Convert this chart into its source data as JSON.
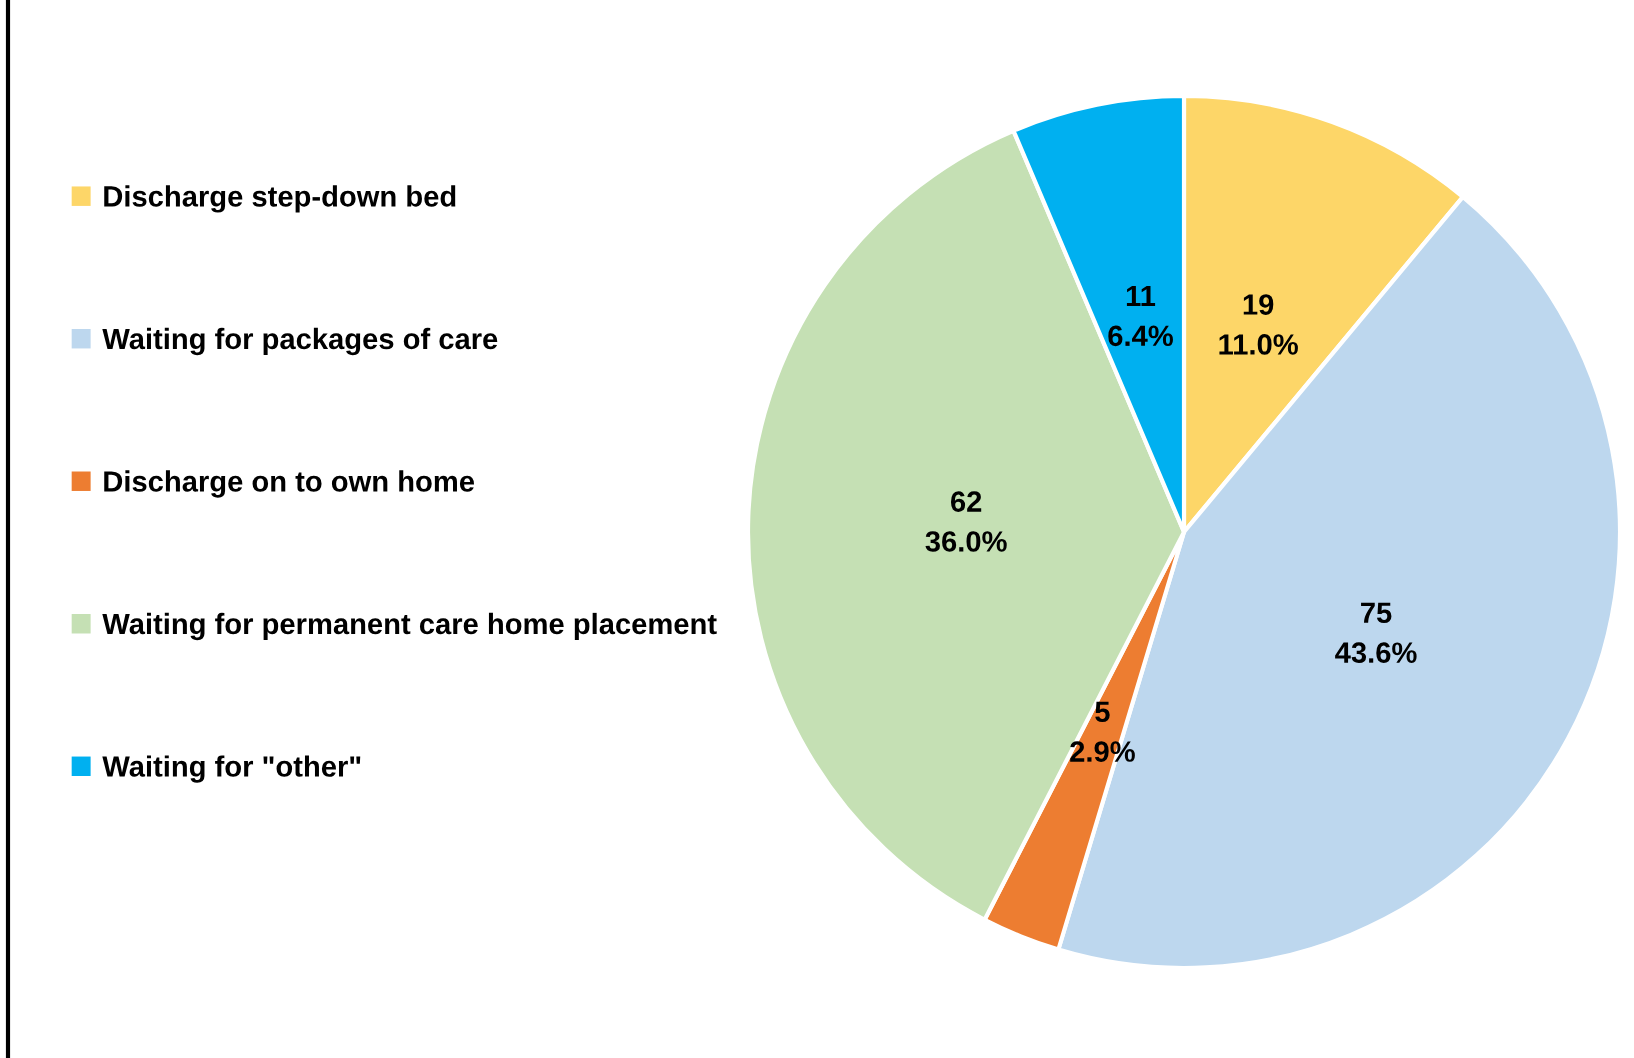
{
  "chart_data": {
    "type": "pie",
    "categories": [
      "Discharge step-down bed",
      "Waiting for packages of care",
      "Discharge on to own home",
      "Waiting for permanent care home placement",
      "Waiting for \"other\""
    ],
    "values": [
      19,
      75,
      5,
      62,
      11
    ],
    "colors": [
      "#fdd668",
      "#bdd7ee",
      "#ed7d31",
      "#c5e0b4",
      "#00b0f0"
    ],
    "value_labels": [
      "19\n11.0%",
      "75\n43.6%",
      "5\n2.9%",
      "62\n36.0%",
      "11\n6.4%"
    ],
    "legend": "left"
  }
}
